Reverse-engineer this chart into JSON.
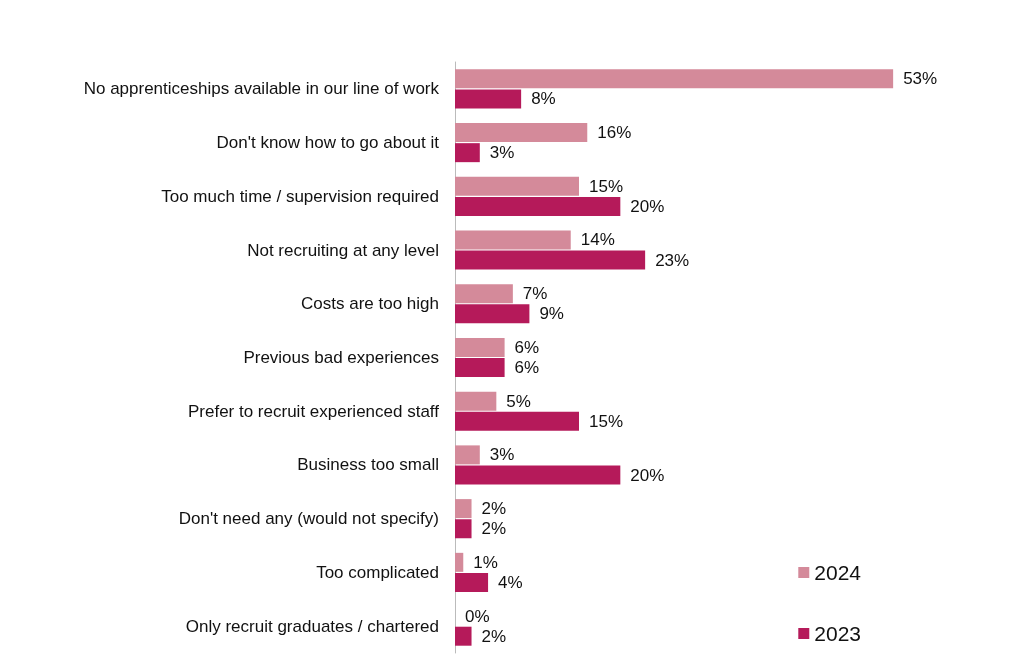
{
  "chart_data": {
    "type": "bar",
    "orientation": "horizontal",
    "legend": "bottom right",
    "categories": [
      "No apprenticeships available in our line of work",
      "Don't know how to go about it",
      "Too much time / supervision required",
      "Not recruiting at any level",
      "Costs are too high",
      "Previous bad experiences",
      "Prefer to recruit experienced staff",
      "Business too small",
      "Don't need any (would not specify)",
      "Too complicated",
      "Only recruit graduates / chartered"
    ],
    "series": [
      {
        "name": "2024",
        "color": "#d48a9a",
        "values": [
          53,
          16,
          15,
          14,
          7,
          6,
          5,
          3,
          2,
          1,
          0
        ],
        "value_labels": [
          "53%",
          "16%",
          "15%",
          "14%",
          "7%",
          "6%",
          "5%",
          "3%",
          "2%",
          "1%",
          "0%"
        ]
      },
      {
        "name": "2023",
        "color": "#b51a5a",
        "values": [
          8,
          3,
          20,
          23,
          9,
          6,
          15,
          20,
          2,
          4,
          2
        ],
        "value_labels": [
          "8%",
          "3%",
          "20%",
          "23%",
          "9%",
          "6%",
          "15%",
          "20%",
          "2%",
          "4%",
          "2%"
        ]
      }
    ]
  }
}
